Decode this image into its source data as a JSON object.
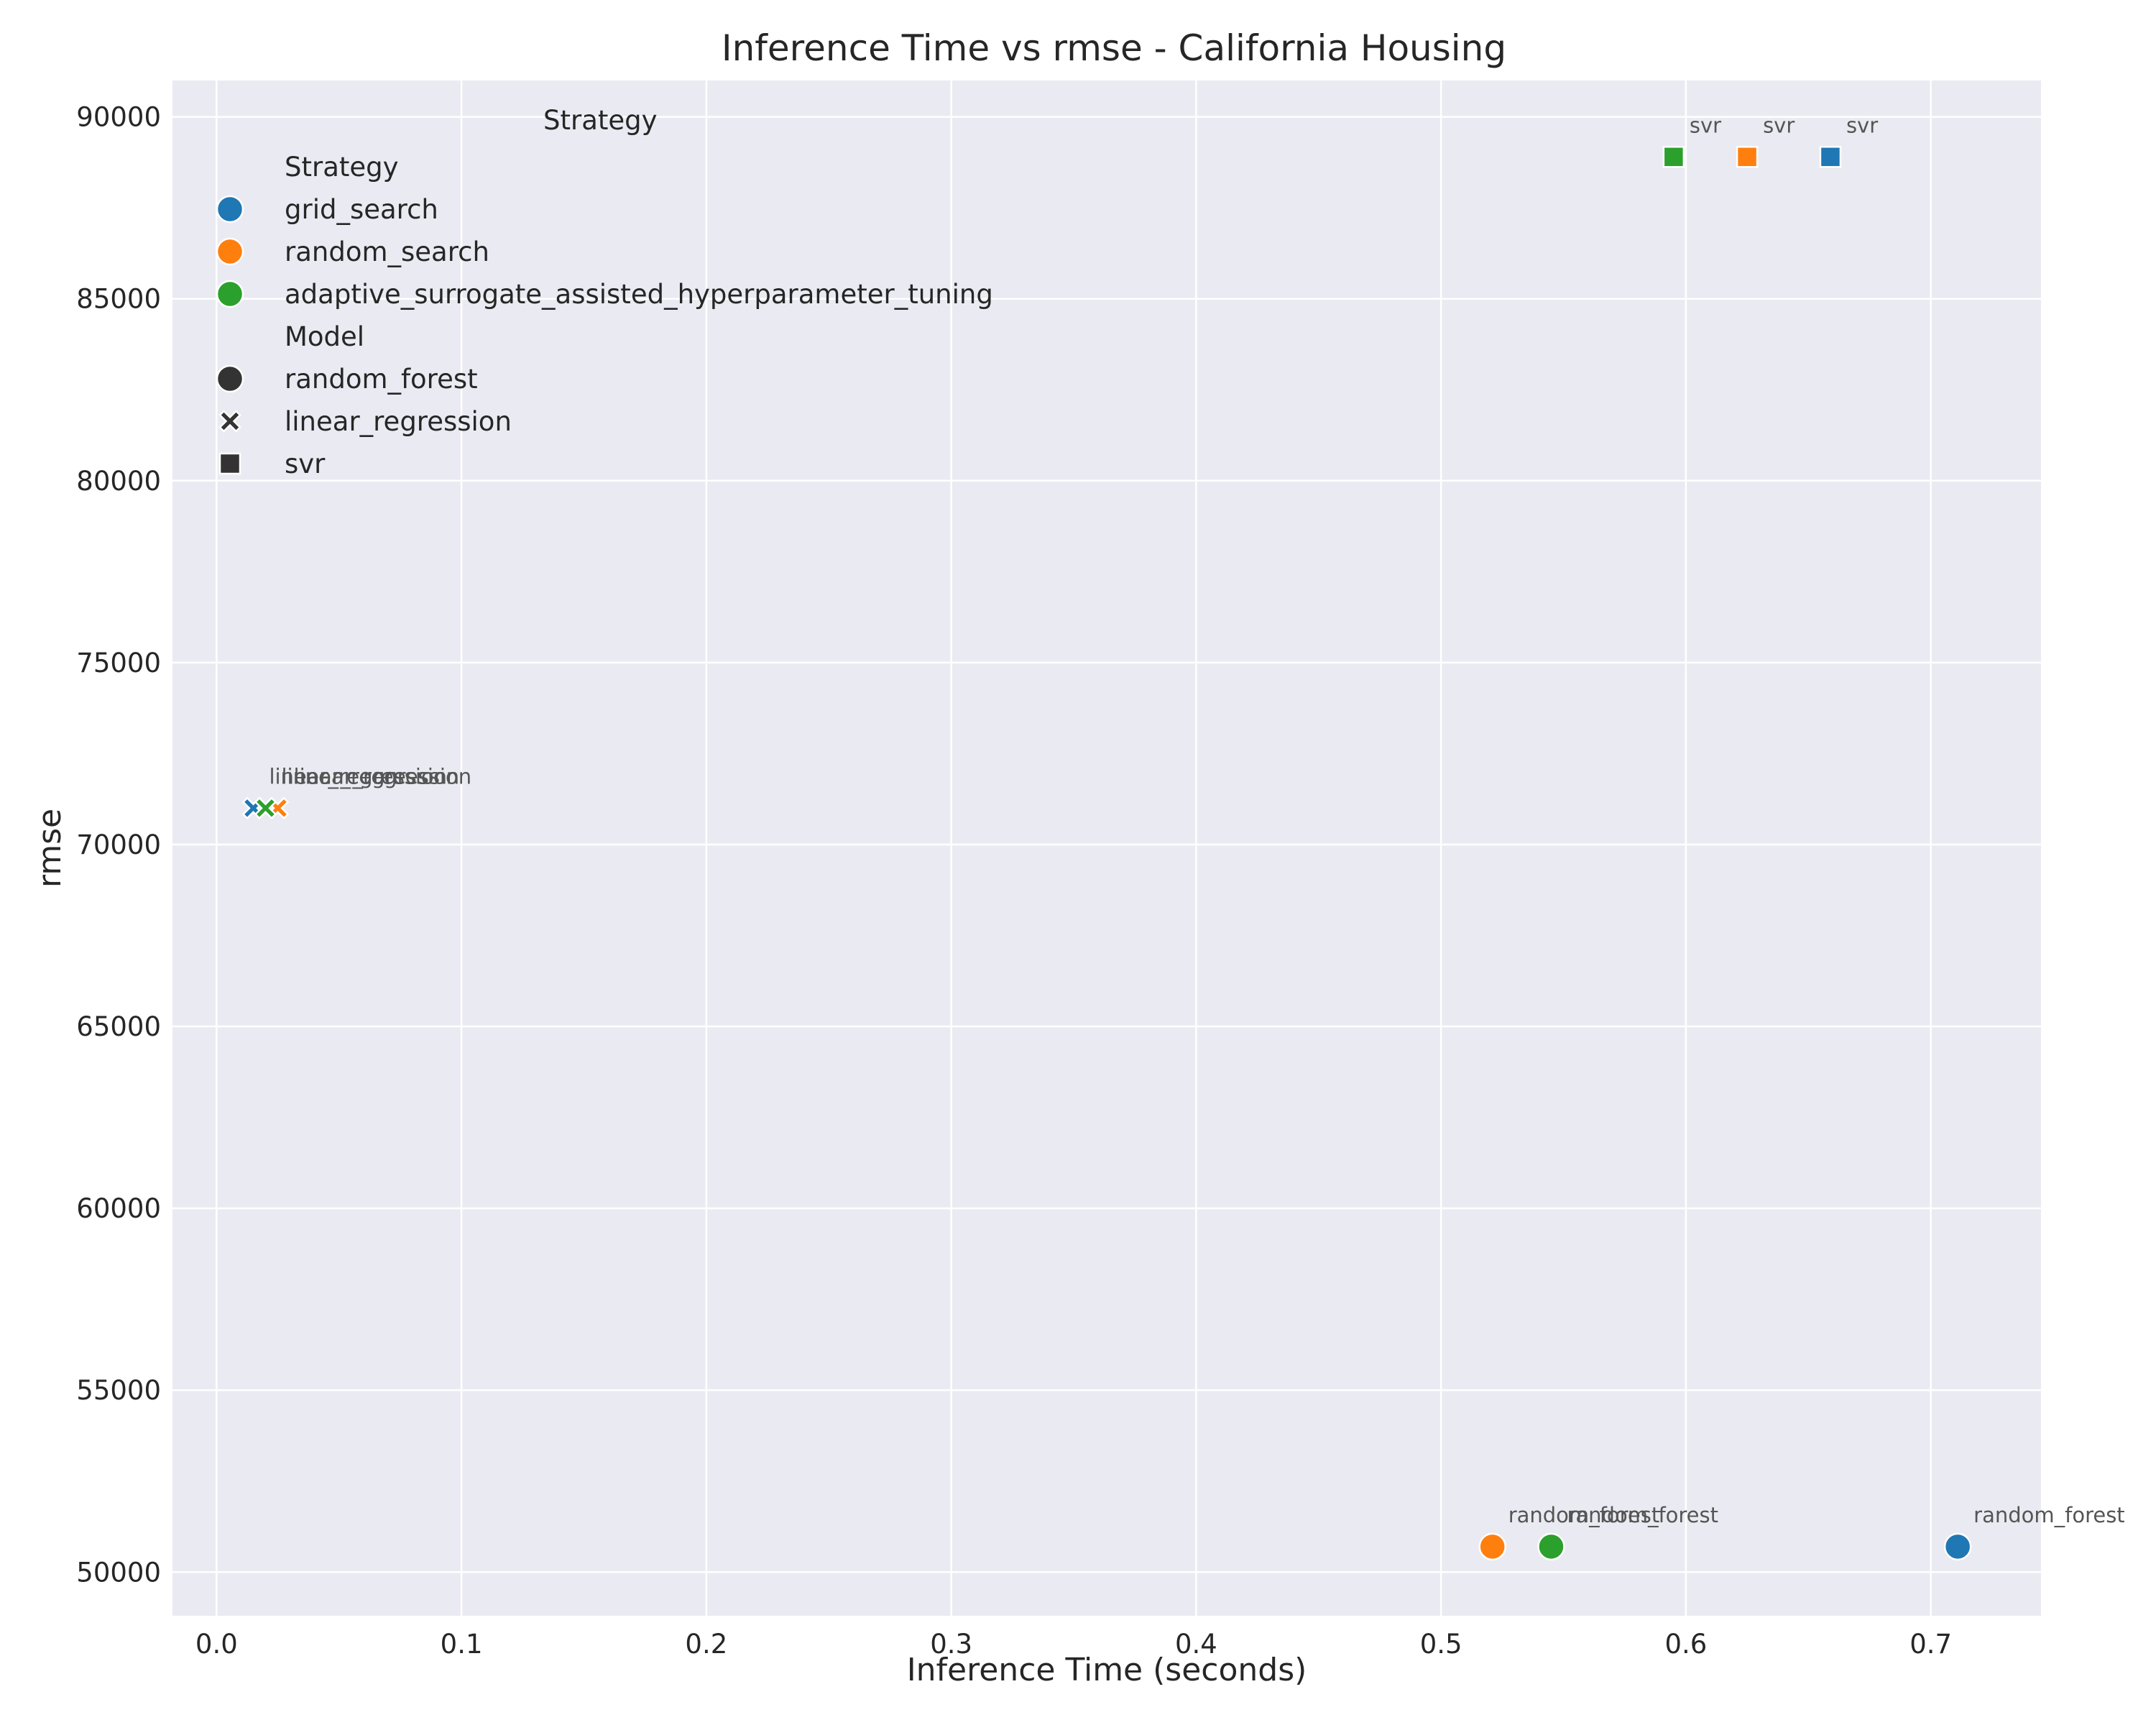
{
  "chart_data": {
    "type": "scatter",
    "title": "Inference Time vs rmse - California Housing",
    "xlabel": "Inference Time (seconds)",
    "ylabel": "rmse",
    "xlim": [
      -0.018,
      0.745
    ],
    "ylim": [
      48800,
      91000
    ],
    "xticks": [
      0.0,
      0.1,
      0.2,
      0.3,
      0.4,
      0.5,
      0.6,
      0.7
    ],
    "xtick_labels": [
      "0.0",
      "0.1",
      "0.2",
      "0.3",
      "0.4",
      "0.5",
      "0.6",
      "0.7"
    ],
    "yticks": [
      50000,
      55000,
      60000,
      65000,
      70000,
      75000,
      80000,
      85000,
      90000
    ],
    "ytick_labels": [
      "50000",
      "55000",
      "60000",
      "65000",
      "70000",
      "75000",
      "80000",
      "85000",
      "90000"
    ],
    "grid": true,
    "plot_background": "#eaeaf2",
    "grid_color": "#ffffff",
    "stray_legend_label": "Strategy",
    "legend": {
      "placement": "top-left",
      "strategy_title": "Strategy",
      "strategies": [
        {
          "name": "grid_search",
          "color": "#1f77b4"
        },
        {
          "name": "random_search",
          "color": "#ff7f0e"
        },
        {
          "name": "adaptive_surrogate_assisted_hyperparameter_tuning",
          "color": "#2ca02c"
        }
      ],
      "model_title": "Model",
      "models": [
        {
          "name": "random_forest",
          "marker": "circle"
        },
        {
          "name": "linear_regression",
          "marker": "x"
        },
        {
          "name": "svr",
          "marker": "square"
        }
      ]
    },
    "points": [
      {
        "strategy": "grid_search",
        "model": "random_forest",
        "x": 0.711,
        "y": 50700,
        "label": "random_forest"
      },
      {
        "strategy": "random_search",
        "model": "random_forest",
        "x": 0.521,
        "y": 50700,
        "label": "random_forest"
      },
      {
        "strategy": "adaptive_surrogate_assisted_hyperparameter_tuning",
        "model": "random_forest",
        "x": 0.545,
        "y": 50700,
        "label": "random_forest"
      },
      {
        "strategy": "grid_search",
        "model": "linear_regression",
        "x": 0.015,
        "y": 71000,
        "label": "linear_regression"
      },
      {
        "strategy": "random_search",
        "model": "linear_regression",
        "x": 0.025,
        "y": 71000,
        "label": "linear_regression"
      },
      {
        "strategy": "adaptive_surrogate_assisted_hyperparameter_tuning",
        "model": "linear_regression",
        "x": 0.02,
        "y": 71000,
        "label": "linear_regression"
      },
      {
        "strategy": "grid_search",
        "model": "svr",
        "x": 0.659,
        "y": 88900,
        "label": "svr"
      },
      {
        "strategy": "random_search",
        "model": "svr",
        "x": 0.625,
        "y": 88900,
        "label": "svr"
      },
      {
        "strategy": "adaptive_surrogate_assisted_hyperparameter_tuning",
        "model": "svr",
        "x": 0.595,
        "y": 88900,
        "label": "svr"
      }
    ]
  }
}
